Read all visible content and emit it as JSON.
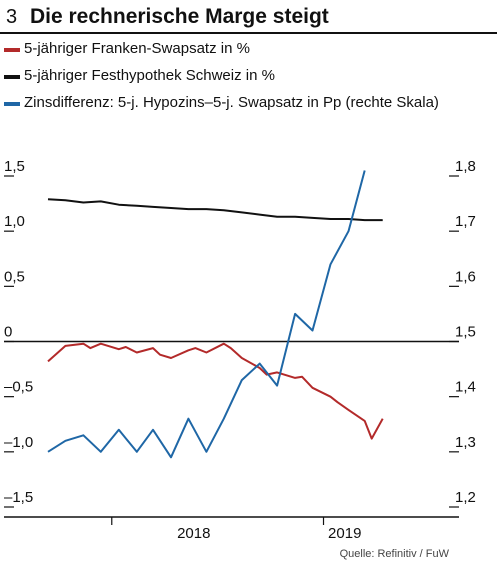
{
  "figure_number": "3",
  "title": "Die rechnerische Marge steigt",
  "source": "Quelle: Refinitiv / FuW",
  "colors": {
    "swap": "#b32a2a",
    "festhypothek": "#111111",
    "zinsdifferenz": "#1f67a6"
  },
  "chart_data": {
    "type": "line",
    "title": "Die rechnerische Marge steigt",
    "legend_position": "top-left",
    "grid": false,
    "x_ticks": [
      "2018",
      "2019"
    ],
    "y_left": {
      "ticks": [
        "1,5",
        "1,0",
        "0,5",
        "0",
        "–0,5",
        "–1,0",
        "–1,5"
      ],
      "range": [
        -1.5,
        1.5
      ]
    },
    "y_right": {
      "ticks": [
        "1,8",
        "1,7",
        "1,6",
        "1,5",
        "1,4",
        "1,3",
        "1,2"
      ],
      "range": [
        1.2,
        1.8
      ]
    },
    "series": [
      {
        "name": "5-jähriger Franken-Swapsatz in %",
        "axis": "left",
        "color": "#b32a2a",
        "x": [
          "2017-09",
          "2017-10",
          "2017-11",
          "2017-11",
          "2017-12",
          "2018-01",
          "2018-01",
          "2018-02",
          "2018-03",
          "2018-03",
          "2018-04",
          "2018-05",
          "2018-05",
          "2018-06",
          "2018-07",
          "2018-07",
          "2018-08",
          "2018-09",
          "2018-09",
          "2018-10",
          "2018-11",
          "2018-11",
          "2018-12",
          "2019-01",
          "2019-01",
          "2019-02",
          "2019-03",
          "2019-03",
          "2019-04"
        ],
        "values": [
          -0.18,
          -0.04,
          -0.02,
          -0.06,
          -0.02,
          -0.07,
          -0.05,
          -0.1,
          -0.06,
          -0.12,
          -0.15,
          -0.08,
          -0.06,
          -0.1,
          -0.02,
          -0.06,
          -0.15,
          -0.24,
          -0.3,
          -0.28,
          -0.33,
          -0.32,
          -0.42,
          -0.5,
          -0.55,
          -0.62,
          -0.72,
          -0.88,
          -0.7
        ]
      },
      {
        "name": "5-jähriger Festhypothek Schweiz in %",
        "axis": "left",
        "color": "#111111",
        "x": [
          "2017-09",
          "2017-10",
          "2017-11",
          "2017-12",
          "2018-01",
          "2018-02",
          "2018-03",
          "2018-04",
          "2018-05",
          "2018-06",
          "2018-07",
          "2018-08",
          "2018-09",
          "2018-10",
          "2018-11",
          "2018-12",
          "2019-01",
          "2019-02",
          "2019-03",
          "2019-04"
        ],
        "values": [
          1.29,
          1.28,
          1.26,
          1.27,
          1.24,
          1.23,
          1.22,
          1.21,
          1.2,
          1.2,
          1.19,
          1.17,
          1.15,
          1.13,
          1.13,
          1.12,
          1.11,
          1.11,
          1.1,
          1.1
        ]
      },
      {
        "name": "Zinsdifferenz: 5-j. Hypozins–5-j. Swapsatz in Pp (rechte Skala)",
        "axis": "right",
        "color": "#1f67a6",
        "x": [
          "2017-09",
          "2017-10",
          "2017-11",
          "2017-12",
          "2018-01",
          "2018-02",
          "2018-03",
          "2018-04",
          "2018-05",
          "2018-06",
          "2018-07",
          "2018-08",
          "2018-09",
          "2018-10",
          "2018-11",
          "2018-12",
          "2019-01",
          "2019-02",
          "2019-03"
        ],
        "values": [
          1.3,
          1.32,
          1.33,
          1.3,
          1.34,
          1.3,
          1.34,
          1.29,
          1.36,
          1.3,
          1.36,
          1.43,
          1.46,
          1.42,
          1.55,
          1.52,
          1.64,
          1.7,
          1.81
        ]
      }
    ]
  }
}
